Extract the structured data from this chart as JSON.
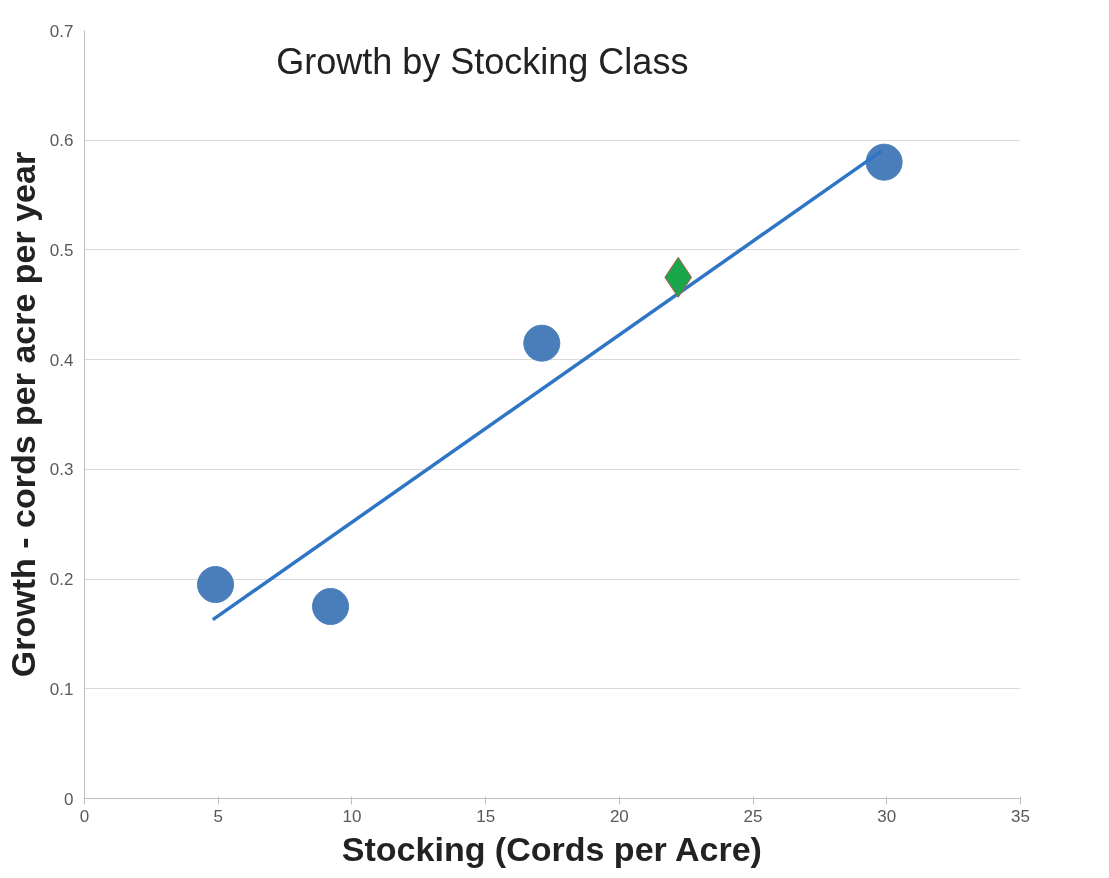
{
  "chart_data": {
    "type": "scatter",
    "title": "Growth by Stocking Class",
    "xlabel": "Stocking (Cords per Acre)",
    "ylabel": "Growth - cords per acre per year",
    "xlim": [
      0,
      35
    ],
    "xticks": [
      0,
      5,
      10,
      15,
      20,
      25,
      30,
      35
    ],
    "ylim": [
      0,
      0.7
    ],
    "yticks": [
      0,
      0.1,
      0.2,
      0.3,
      0.4,
      0.5,
      0.6,
      0.7
    ],
    "grid": "y",
    "series": [
      {
        "marker": "circle",
        "color": "#4a7ebb",
        "x": [
          4.9,
          9.2,
          17.1,
          29.9
        ],
        "values": [
          0.195,
          0.175,
          0.415,
          0.58
        ]
      },
      {
        "type": "line",
        "marker": "none",
        "line_style": "solid",
        "color": "#2e75c6",
        "x": [
          4.8,
          29.8
        ],
        "values": [
          0.163,
          0.59
        ]
      },
      {
        "marker": "diamond",
        "color": "#1aa64a",
        "x": [
          22.2
        ],
        "values": [
          0.475
        ]
      }
    ]
  }
}
